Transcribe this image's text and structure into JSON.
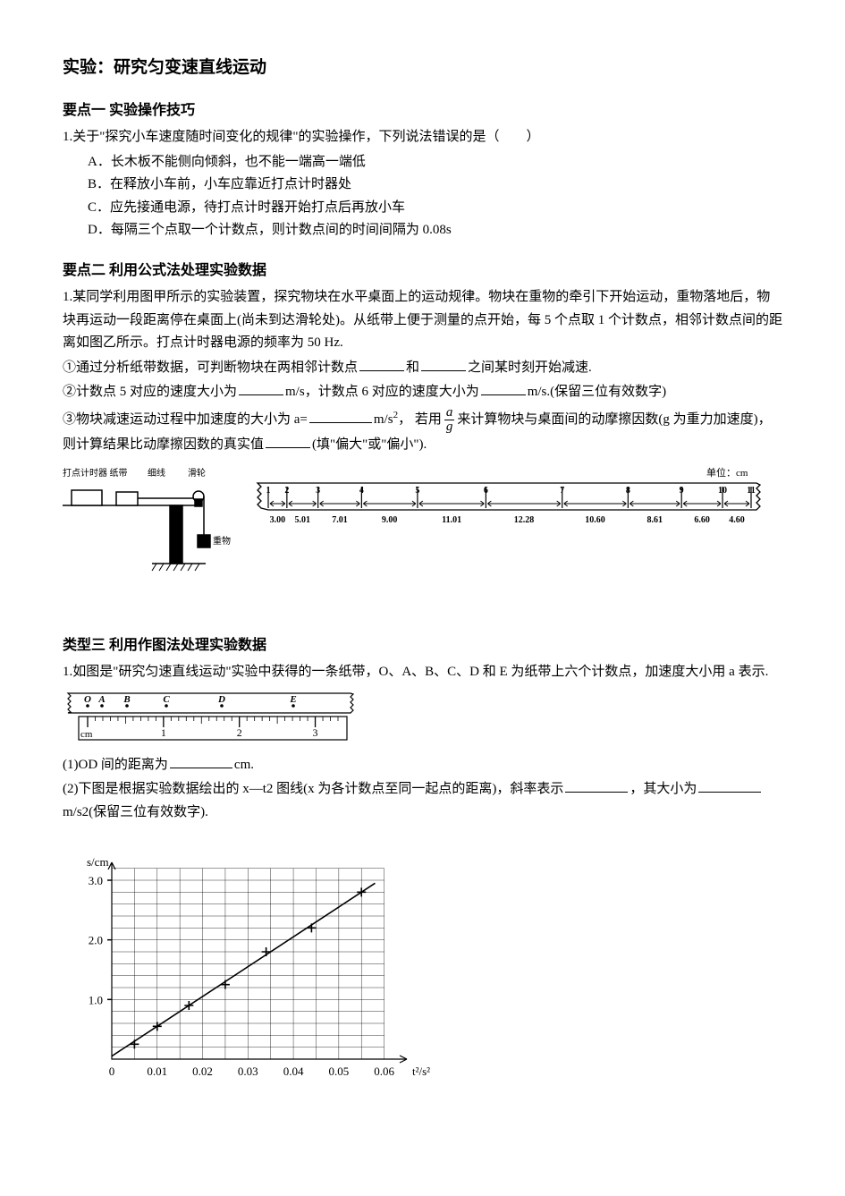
{
  "title": "实验：研究匀变速直线运动",
  "s1": {
    "heading": "要点一 实验操作技巧",
    "q1": "1.关于\"探究小车速度随时间变化的规律\"的实验操作，下列说法错误的是（　　）",
    "optA": "A．长木板不能侧向倾斜，也不能一端高一端低",
    "optB": "B．在释放小车前，小车应靠近打点计时器处",
    "optC": "C．应先接通电源，待打点计时器开始打点后再放小车",
    "optD": "D．每隔三个点取一个计数点，则计数点间的时间间隔为 0.08s"
  },
  "s2": {
    "heading": "要点二 利用公式法处理实验数据",
    "p1a": "1.某同学利用图甲所示的实验装置，探究物块在水平桌面上的运动规律。物块在重物的牵引下开始运动，重物落地后，物块再运动一段距离停在桌面上(尚未到达滑轮处)。从纸带上便于测量的点开始，每 5 个点取 1 个计数点，相邻计数点间的距离如图乙所示。打点计时器电源的频率为 50 Hz.",
    "p2a": "①通过分析纸带数据，可判断物块在两相邻计数点",
    "p2b": "和",
    "p2c": "之间某时刻开始减速.",
    "p3a": "②计数点 5 对应的速度大小为",
    "p3b": "m/s，计数点 6 对应的速度大小为",
    "p3c": "m/s.(保留三位有效数字)",
    "p4a": "③物块减速运动过程中加速度的大小为 a=",
    "p4b": "m/s",
    "p4c": "，  若用",
    "p4d": "来计算物块与桌面间的动摩擦因数(g 为重力加速度)，则计算结果比动摩擦因数的真实值",
    "p4e": "(填\"偏大\"或\"偏小\").",
    "tape": {
      "unit_label": "单位：cm",
      "labels": [
        "1",
        "2",
        "3",
        "4",
        "5",
        "6",
        "7",
        "8",
        "9",
        "10",
        "11"
      ],
      "values": [
        "3.00",
        "5.01",
        "7.01",
        "9.00",
        "11.01",
        "12.28",
        "10.60",
        "8.61",
        "6.60",
        "4.60"
      ],
      "font_size": 10,
      "stroke": "#000000"
    },
    "apparatus": {
      "labels": [
        "打点计时器 纸带",
        "细线",
        "滑轮",
        "重物"
      ],
      "stroke": "#000000"
    }
  },
  "s3": {
    "heading": "类型三 利用作图法处理实验数据",
    "p1": "1.如图是\"研究匀速直线运动\"实验中获得的一条纸带，O、A、B、C、D 和 E 为纸带上六个计数点，加速度大小用 a 表示.",
    "tape3": {
      "points": [
        "O",
        "A",
        "B",
        "C",
        "D",
        "E"
      ],
      "ruler_labels": [
        "1",
        "2",
        "3"
      ],
      "ruler_unit": "cm",
      "stroke": "#000000"
    },
    "p2a": "(1)OD 间的距离为",
    "p2b": "cm.",
    "p3a": "(2)下图是根据实验数据绘出的 x—t2 图线(x 为各计数点至同一起点的距离)，斜率表示",
    "p3b": "，其大小为",
    "p3c": "m/s2(保留三位有效数字).",
    "graph": {
      "type": "scatter-line",
      "xlabel": "t²/s²",
      "ylabel": "s/cm",
      "xlim": [
        0,
        0.065
      ],
      "ylim": [
        0,
        3.3
      ],
      "xticks": [
        0,
        0.01,
        0.02,
        0.03,
        0.04,
        0.05,
        0.06
      ],
      "yticks": [
        0,
        1.0,
        2.0,
        3.0
      ],
      "grid_major_x": [
        0.01,
        0.02,
        0.03,
        0.04,
        0.05,
        0.06
      ],
      "grid_minor_x_step": 0.005,
      "grid_minor_y_step": 0.2,
      "points": [
        {
          "x": 0.005,
          "y": 0.25
        },
        {
          "x": 0.01,
          "y": 0.55
        },
        {
          "x": 0.017,
          "y": 0.9
        },
        {
          "x": 0.025,
          "y": 1.25
        },
        {
          "x": 0.034,
          "y": 1.8
        },
        {
          "x": 0.044,
          "y": 2.2
        },
        {
          "x": 0.055,
          "y": 2.8
        }
      ],
      "line_start": {
        "x": 0.0,
        "y": 0.05
      },
      "line_end": {
        "x": 0.058,
        "y": 2.95
      },
      "stroke": "#000000",
      "grid_stroke": "#000000",
      "grid_width": 0.4,
      "axis_width": 1.2,
      "marker": "plus",
      "marker_size": 5,
      "font_size": 13
    }
  }
}
